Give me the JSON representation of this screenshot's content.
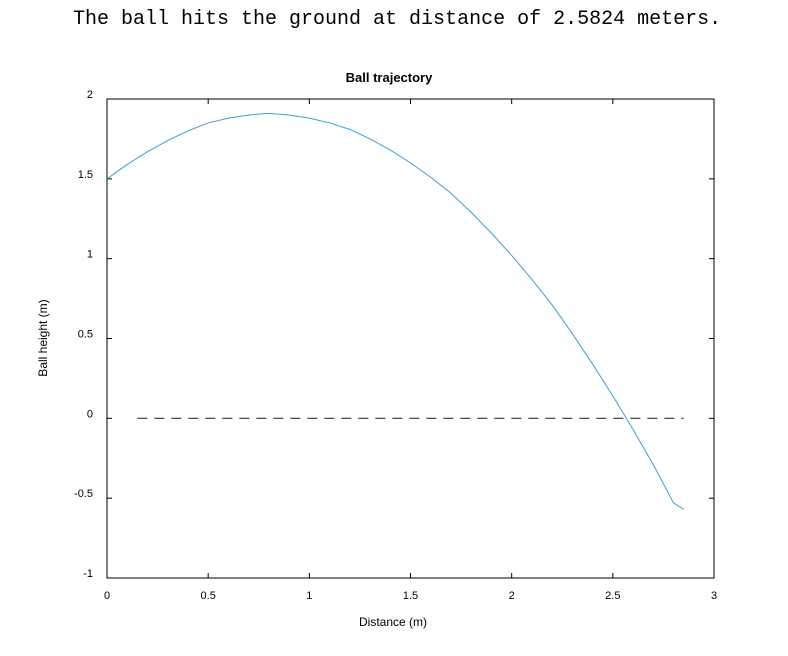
{
  "output": {
    "message": "The ball hits the ground at distance of 2.5824 meters."
  },
  "chart_data": {
    "type": "line",
    "title": "Ball trajectory",
    "xlabel": "Distance (m)",
    "ylabel": "Ball height (m)",
    "xlim": [
      0,
      3
    ],
    "ylim": [
      -1,
      2
    ],
    "xticks": [
      0,
      0.5,
      1,
      1.5,
      2,
      2.5,
      3
    ],
    "xtick_labels": [
      "0",
      "0.5",
      "1",
      "1.5",
      "2",
      "2.5",
      "3"
    ],
    "yticks": [
      -1,
      -0.5,
      0,
      0.5,
      1,
      1.5,
      2
    ],
    "ytick_labels": [
      "-1",
      "-0.5",
      "0",
      "0.5",
      "1",
      "1.5",
      "2"
    ],
    "grid": false,
    "series": [
      {
        "color": "#3b9fd6",
        "style": "solid",
        "x": [
          0,
          0.1,
          0.2,
          0.3,
          0.4,
          0.5,
          0.6,
          0.7,
          0.8,
          0.9,
          1.0,
          1.1,
          1.2,
          1.3,
          1.4,
          1.5,
          1.6,
          1.7,
          1.8,
          1.9,
          2.0,
          2.1,
          2.2,
          2.3,
          2.4,
          2.5,
          2.6,
          2.7,
          2.8,
          2.85
        ],
        "y": [
          1.5,
          1.59,
          1.67,
          1.74,
          1.8,
          1.85,
          1.88,
          1.9,
          1.91,
          1.9,
          1.88,
          1.85,
          1.81,
          1.75,
          1.68,
          1.6,
          1.51,
          1.41,
          1.29,
          1.16,
          1.02,
          0.87,
          0.71,
          0.53,
          0.34,
          0.14,
          -0.07,
          -0.29,
          -0.53,
          -0.57
        ]
      },
      {
        "color": "#333333",
        "style": "dashed",
        "x": [
          0.15,
          2.85
        ],
        "y": [
          0,
          0
        ]
      }
    ]
  }
}
